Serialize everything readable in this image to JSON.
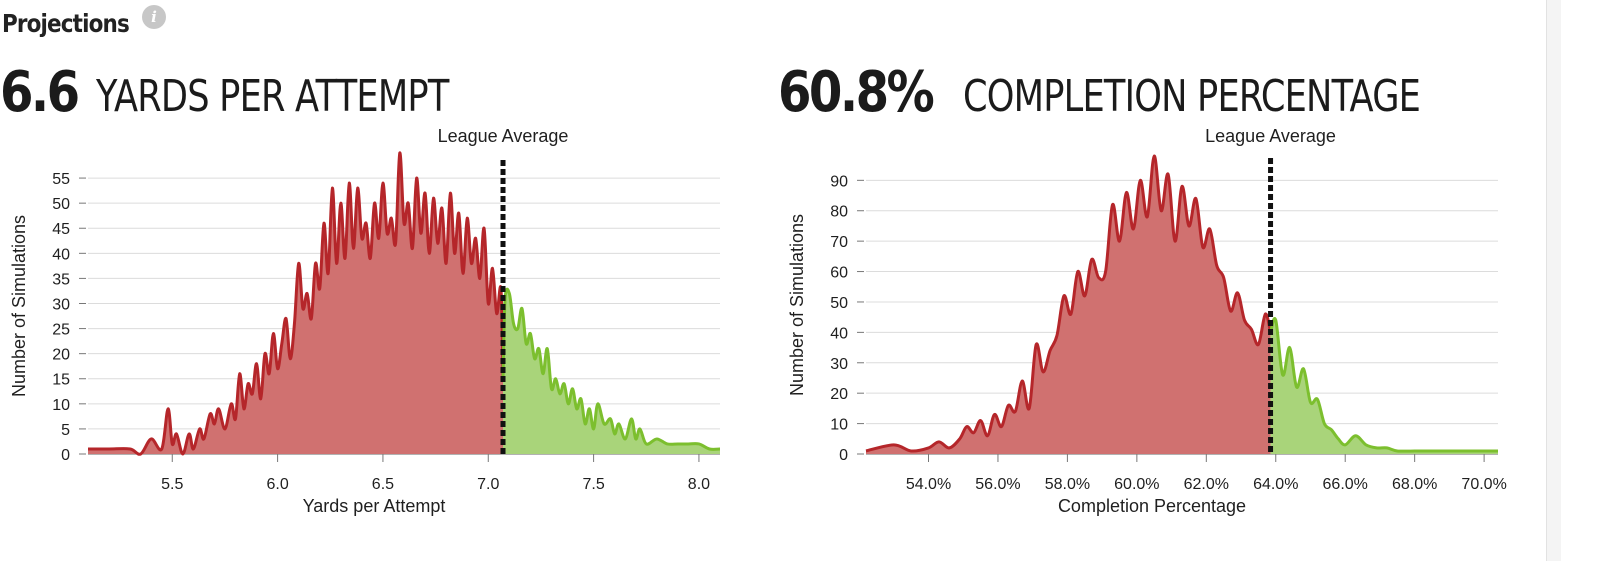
{
  "header": {
    "title": "Projections",
    "info_icon": "info-icon"
  },
  "stats": {
    "left": {
      "value": "6.6",
      "label": "YARDS PER ATTEMPT"
    },
    "right": {
      "value": "60.8%",
      "label": "COMPLETION PERCENTAGE"
    }
  },
  "colors": {
    "below_fill": "#d07170",
    "below_line": "#b5262a",
    "above_fill": "#a9d47a",
    "above_line": "#7cbf2e",
    "grid": "#dcdcdc",
    "marker": "#111111"
  },
  "chart_data": [
    {
      "type": "area",
      "title": "",
      "xlabel": "Yards per Attempt",
      "ylabel": "Number of Simulations",
      "xlim": [
        5.1,
        8.1
      ],
      "ylim": [
        0,
        59
      ],
      "x_ticks": [
        5.5,
        6.0,
        6.5,
        7.0,
        7.5,
        8.0
      ],
      "x_tick_labels": [
        "5.5",
        "6.0",
        "6.5",
        "7.0",
        "7.5",
        "8.0"
      ],
      "y_ticks": [
        0,
        5,
        10,
        15,
        20,
        25,
        30,
        35,
        40,
        45,
        50,
        55
      ],
      "y_tick_labels": [
        "0",
        "5",
        "10",
        "15",
        "20",
        "25",
        "30",
        "35",
        "40",
        "45",
        "50",
        "55"
      ],
      "marker": {
        "x": 7.07,
        "label": "League Average"
      },
      "series": [
        {
          "x": [
            5.1,
            5.2,
            5.3,
            5.35,
            5.4,
            5.45,
            5.48,
            5.5,
            5.52,
            5.55,
            5.58,
            5.6,
            5.63,
            5.65,
            5.68,
            5.7,
            5.72,
            5.75,
            5.78,
            5.8,
            5.82,
            5.84,
            5.86,
            5.88,
            5.9,
            5.92,
            5.94,
            5.96,
            5.98,
            6.0,
            6.02,
            6.04,
            6.06,
            6.08,
            6.1,
            6.12,
            6.14,
            6.16,
            6.18,
            6.2,
            6.22,
            6.24,
            6.26,
            6.28,
            6.3,
            6.32,
            6.34,
            6.36,
            6.38,
            6.4,
            6.42,
            6.44,
            6.46,
            6.48,
            6.5,
            6.52,
            6.54,
            6.56,
            6.58,
            6.6,
            6.62,
            6.64,
            6.66,
            6.68,
            6.7,
            6.72,
            6.74,
            6.76,
            6.78,
            6.8,
            6.82,
            6.84,
            6.86,
            6.88,
            6.9,
            6.92,
            6.94,
            6.96,
            6.98,
            7.0,
            7.02,
            7.04,
            7.06,
            7.07,
            7.08,
            7.1,
            7.12,
            7.14,
            7.16,
            7.18,
            7.2,
            7.22,
            7.24,
            7.26,
            7.28,
            7.3,
            7.32,
            7.34,
            7.36,
            7.38,
            7.4,
            7.42,
            7.44,
            7.46,
            7.48,
            7.5,
            7.52,
            7.55,
            7.58,
            7.6,
            7.62,
            7.65,
            7.68,
            7.7,
            7.72,
            7.75,
            7.8,
            7.85,
            7.9,
            7.95,
            8.0,
            8.05,
            8.1
          ],
          "y": [
            1,
            1,
            1,
            0,
            3,
            1,
            9,
            2,
            4,
            0,
            4,
            1,
            5,
            3,
            8,
            6,
            9,
            5,
            10,
            7,
            16,
            9,
            14,
            12,
            18,
            11,
            20,
            16,
            24,
            17,
            22,
            27,
            19,
            26,
            38,
            29,
            32,
            27,
            38,
            33,
            46,
            36,
            53,
            38,
            50,
            39,
            54,
            41,
            53,
            43,
            46,
            39,
            50,
            43,
            54,
            44,
            47,
            42,
            60,
            46,
            50,
            41,
            55,
            44,
            52,
            40,
            51,
            42,
            49,
            38,
            52,
            40,
            48,
            36,
            47,
            38,
            43,
            35,
            45,
            30,
            37,
            28,
            33,
            15,
            31,
            32,
            26,
            25,
            29,
            22,
            24,
            19,
            21,
            16,
            21,
            13,
            15,
            12,
            14,
            10,
            13,
            9,
            11,
            6,
            9,
            5,
            10,
            6,
            7,
            4,
            6,
            3,
            7,
            3,
            5,
            2,
            3,
            2,
            2,
            2,
            2,
            1,
            1
          ]
        }
      ]
    },
    {
      "type": "area",
      "title": "",
      "xlabel": "Completion Percentage",
      "ylabel": "Number of Simulations",
      "xlim": [
        52.2,
        70.4
      ],
      "ylim": [
        0,
        98
      ],
      "x_ticks": [
        54,
        56,
        58,
        60,
        62,
        64,
        66,
        68,
        70
      ],
      "x_tick_labels": [
        "54.0%",
        "56.0%",
        "58.0%",
        "60.0%",
        "62.0%",
        "64.0%",
        "66.0%",
        "68.0%",
        "70.0%"
      ],
      "y_ticks": [
        0,
        10,
        20,
        30,
        40,
        50,
        60,
        70,
        80,
        90
      ],
      "y_tick_labels": [
        "0",
        "10",
        "20",
        "30",
        "40",
        "50",
        "60",
        "70",
        "80",
        "90"
      ],
      "marker": {
        "x": 63.85,
        "label": "League Average"
      },
      "series": [
        {
          "x": [
            52.2,
            53.0,
            53.5,
            54.0,
            54.3,
            54.6,
            54.9,
            55.1,
            55.3,
            55.5,
            55.7,
            55.9,
            56.1,
            56.3,
            56.5,
            56.7,
            56.9,
            57.1,
            57.3,
            57.5,
            57.7,
            57.9,
            58.1,
            58.3,
            58.5,
            58.7,
            58.9,
            59.1,
            59.3,
            59.5,
            59.7,
            59.9,
            60.1,
            60.3,
            60.5,
            60.7,
            60.9,
            61.1,
            61.3,
            61.5,
            61.7,
            61.9,
            62.1,
            62.3,
            62.5,
            62.7,
            62.9,
            63.1,
            63.3,
            63.5,
            63.7,
            63.85,
            64.0,
            64.2,
            64.4,
            64.6,
            64.8,
            65.0,
            65.2,
            65.4,
            65.6,
            65.8,
            66.0,
            66.3,
            66.6,
            66.9,
            67.2,
            67.5,
            68.0,
            68.5,
            69.0,
            69.5,
            70.0,
            70.4
          ],
          "y": [
            1,
            3,
            1,
            2,
            4,
            2,
            5,
            9,
            7,
            11,
            6,
            13,
            9,
            16,
            14,
            24,
            15,
            36,
            27,
            34,
            39,
            52,
            46,
            60,
            52,
            64,
            58,
            60,
            82,
            70,
            86,
            74,
            90,
            78,
            98,
            80,
            92,
            70,
            88,
            75,
            84,
            68,
            74,
            62,
            58,
            47,
            53,
            44,
            41,
            36,
            46,
            40,
            44,
            26,
            35,
            22,
            28,
            17,
            18,
            10,
            8,
            5,
            3,
            6,
            3,
            2,
            2,
            1,
            1,
            1,
            1,
            1,
            1,
            1
          ]
        }
      ]
    }
  ]
}
